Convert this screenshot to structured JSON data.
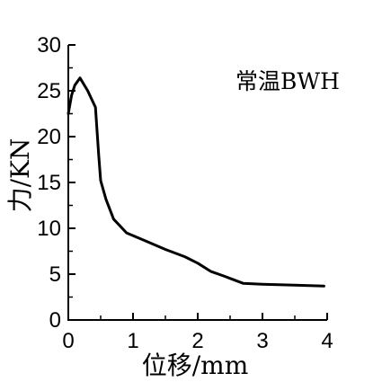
{
  "chart_data": {
    "type": "line",
    "title": "",
    "xlabel": "位移/mm",
    "ylabel": "力/KN",
    "annotation": "常温BWH",
    "xlim": [
      0,
      4
    ],
    "ylim": [
      0,
      30
    ],
    "xticks": [
      0,
      1,
      2,
      3,
      4
    ],
    "yticks": [
      0,
      5,
      10,
      15,
      20,
      25,
      30
    ],
    "grid": false,
    "legend": "none",
    "series": [
      {
        "color": "#000000",
        "x": [
          0,
          0.05,
          0.1,
          0.18,
          0.3,
          0.42,
          0.47,
          0.5,
          0.58,
          0.7,
          0.9,
          1.2,
          1.5,
          1.8,
          2.0,
          2.2,
          2.4,
          2.7,
          3.0,
          3.5,
          3.95
        ],
        "y": [
          22.5,
          24.5,
          25.6,
          26.4,
          25.0,
          23.2,
          18.0,
          15.2,
          13.2,
          11.0,
          9.5,
          8.6,
          7.7,
          6.9,
          6.2,
          5.3,
          4.8,
          4.0,
          3.9,
          3.8,
          3.7
        ]
      }
    ]
  }
}
